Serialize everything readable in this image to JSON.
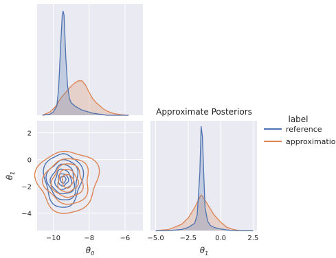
{
  "chart_data": {
    "type": "pairplot",
    "title": "Approximate Posteriors",
    "legend": {
      "title": "label",
      "placement": "right",
      "entries": [
        {
          "name": "reference",
          "color": "#4c72b0"
        },
        {
          "name": "approximation",
          "color": "#dd8452"
        }
      ]
    },
    "style": {
      "background": "#eaeaf2",
      "grid": true,
      "grid_color": "#ffffff"
    },
    "axes": {
      "theta0": {
        "label": "θ0",
        "ticks": [
          -10,
          -8,
          -6
        ],
        "tick_labels": [
          "−10",
          "−8",
          "−6"
        ],
        "lim": [
          -10.9,
          -5.0
        ]
      },
      "theta1": {
        "label": "θ1",
        "ticks": [
          -5.0,
          -2.5,
          0.0,
          2.5
        ],
        "tick_labels": [
          "−5.0",
          "−2.5",
          "0.0",
          "2.5"
        ],
        "lim": [
          -5.4,
          2.8
        ]
      },
      "theta1_vertical": {
        "ticks": [
          2,
          0,
          -2,
          -4
        ],
        "tick_labels": [
          "2",
          "0",
          "−2",
          "−4"
        ],
        "lim": [
          -5.3,
          2.9
        ]
      }
    },
    "panels": [
      {
        "id": "marginal-theta0",
        "type": "kde",
        "x": [
          -10.6,
          -10.2,
          -10.0,
          -9.8,
          -9.7,
          -9.6,
          -9.5,
          -9.45,
          -9.4,
          -9.3,
          -9.2,
          -9.1,
          -9.0,
          -8.8,
          -8.6,
          -8.4,
          -8.2,
          -8.0,
          -7.8,
          -7.6,
          -7.4,
          -7.2,
          -7.0,
          -6.6,
          -6.2,
          -5.8
        ],
        "series": [
          {
            "name": "reference",
            "values": [
              0.0,
              0.01,
              0.03,
              0.09,
              0.25,
              0.62,
              0.95,
              1.0,
              0.96,
              0.55,
              0.28,
              0.16,
              0.12,
              0.09,
              0.07,
              0.05,
              0.04,
              0.03,
              0.02,
              0.015,
              0.01,
              0.005,
              0.0,
              0.0,
              0.0,
              0.0
            ]
          },
          {
            "name": "approximation",
            "values": [
              0.0,
              0.03,
              0.06,
              0.1,
              0.13,
              0.16,
              0.18,
              0.19,
              0.2,
              0.22,
              0.24,
              0.26,
              0.28,
              0.31,
              0.33,
              0.33,
              0.29,
              0.22,
              0.16,
              0.12,
              0.09,
              0.06,
              0.04,
              0.015,
              0.005,
              0.0
            ]
          }
        ]
      },
      {
        "id": "joint-theta0-theta1",
        "type": "kde-contour",
        "series": [
          {
            "name": "reference",
            "center": [
              -9.45,
              -1.5
            ],
            "levels": [
              {
                "rx": 0.15,
                "ry": 0.25
              },
              {
                "rx": 0.28,
                "ry": 0.45
              },
              {
                "rx": 0.45,
                "ry": 0.75
              },
              {
                "rx": 0.65,
                "ry": 1.1
              },
              {
                "rx": 0.85,
                "ry": 1.5
              },
              {
                "rx": 1.05,
                "ry": 2.0
              }
            ]
          },
          {
            "name": "approximation",
            "center": [
              -9.2,
              -1.6
            ],
            "levels": [
              {
                "rx": 0.3,
                "ry": 0.5
              },
              {
                "rx": 0.55,
                "ry": 0.85
              },
              {
                "rx": 0.85,
                "ry": 1.25
              },
              {
                "rx": 1.25,
                "ry": 1.7
              },
              {
                "rx": 1.7,
                "ry": 2.3
              }
            ]
          }
        ]
      },
      {
        "id": "marginal-theta1",
        "type": "kde",
        "x": [
          -5.0,
          -4.0,
          -3.0,
          -2.5,
          -2.0,
          -1.8,
          -1.6,
          -1.5,
          -1.4,
          -1.3,
          -1.2,
          -1.0,
          -0.8,
          -0.5,
          0.0,
          0.5,
          1.0,
          1.5,
          2.5
        ],
        "series": [
          {
            "name": "reference",
            "values": [
              0.0,
              0.0,
              0.01,
              0.03,
              0.07,
              0.15,
              0.55,
              1.0,
              0.9,
              0.55,
              0.22,
              0.09,
              0.05,
              0.03,
              0.015,
              0.005,
              0.0,
              0.0,
              0.0
            ]
          },
          {
            "name": "approximation",
            "values": [
              0.0,
              0.01,
              0.06,
              0.12,
              0.22,
              0.27,
              0.32,
              0.34,
              0.33,
              0.31,
              0.29,
              0.25,
              0.21,
              0.15,
              0.08,
              0.03,
              0.01,
              0.0,
              0.0
            ]
          }
        ]
      }
    ]
  }
}
